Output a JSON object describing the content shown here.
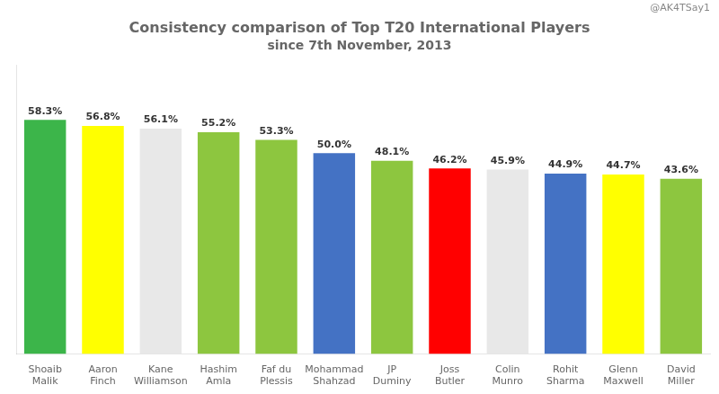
{
  "chart_data": {
    "type": "bar",
    "title": "Consistency comparison of Top T20 International Players",
    "subtitle": "since 7th November, 2013",
    "annotations": [
      "@AK4TSay1"
    ],
    "categories": [
      "Shoaib\nMalik",
      "Aaron\nFinch",
      "Kane\nWilliamson",
      "Hashim\nAmla",
      "Faf du\nPlessis",
      "Mohammad\nShahzad",
      "JP\nDuminy",
      "Joss\nButler",
      "Colin\nMunro",
      "Rohit\nSharma",
      "Glenn\nMaxwell",
      "David\nMiller"
    ],
    "values": [
      58.3,
      56.8,
      56.1,
      55.2,
      53.3,
      50.0,
      48.1,
      46.2,
      45.9,
      44.9,
      44.7,
      43.6
    ],
    "value_labels": [
      "58.3%",
      "56.8%",
      "56.1%",
      "55.2%",
      "53.3%",
      "50.0%",
      "48.1%",
      "46.2%",
      "45.9%",
      "44.9%",
      "44.7%",
      "43.6%"
    ],
    "colors": [
      "#3cb54a",
      "#ffff00",
      "#e8e8e8",
      "#8dc63f",
      "#8dc63f",
      "#4472c4",
      "#8dc63f",
      "#ff0000",
      "#e8e8e8",
      "#4472c4",
      "#ffff00",
      "#8dc63f"
    ],
    "ylim": [
      0,
      72
    ],
    "grid": false,
    "data_labels": true,
    "tick_labels": "x"
  }
}
